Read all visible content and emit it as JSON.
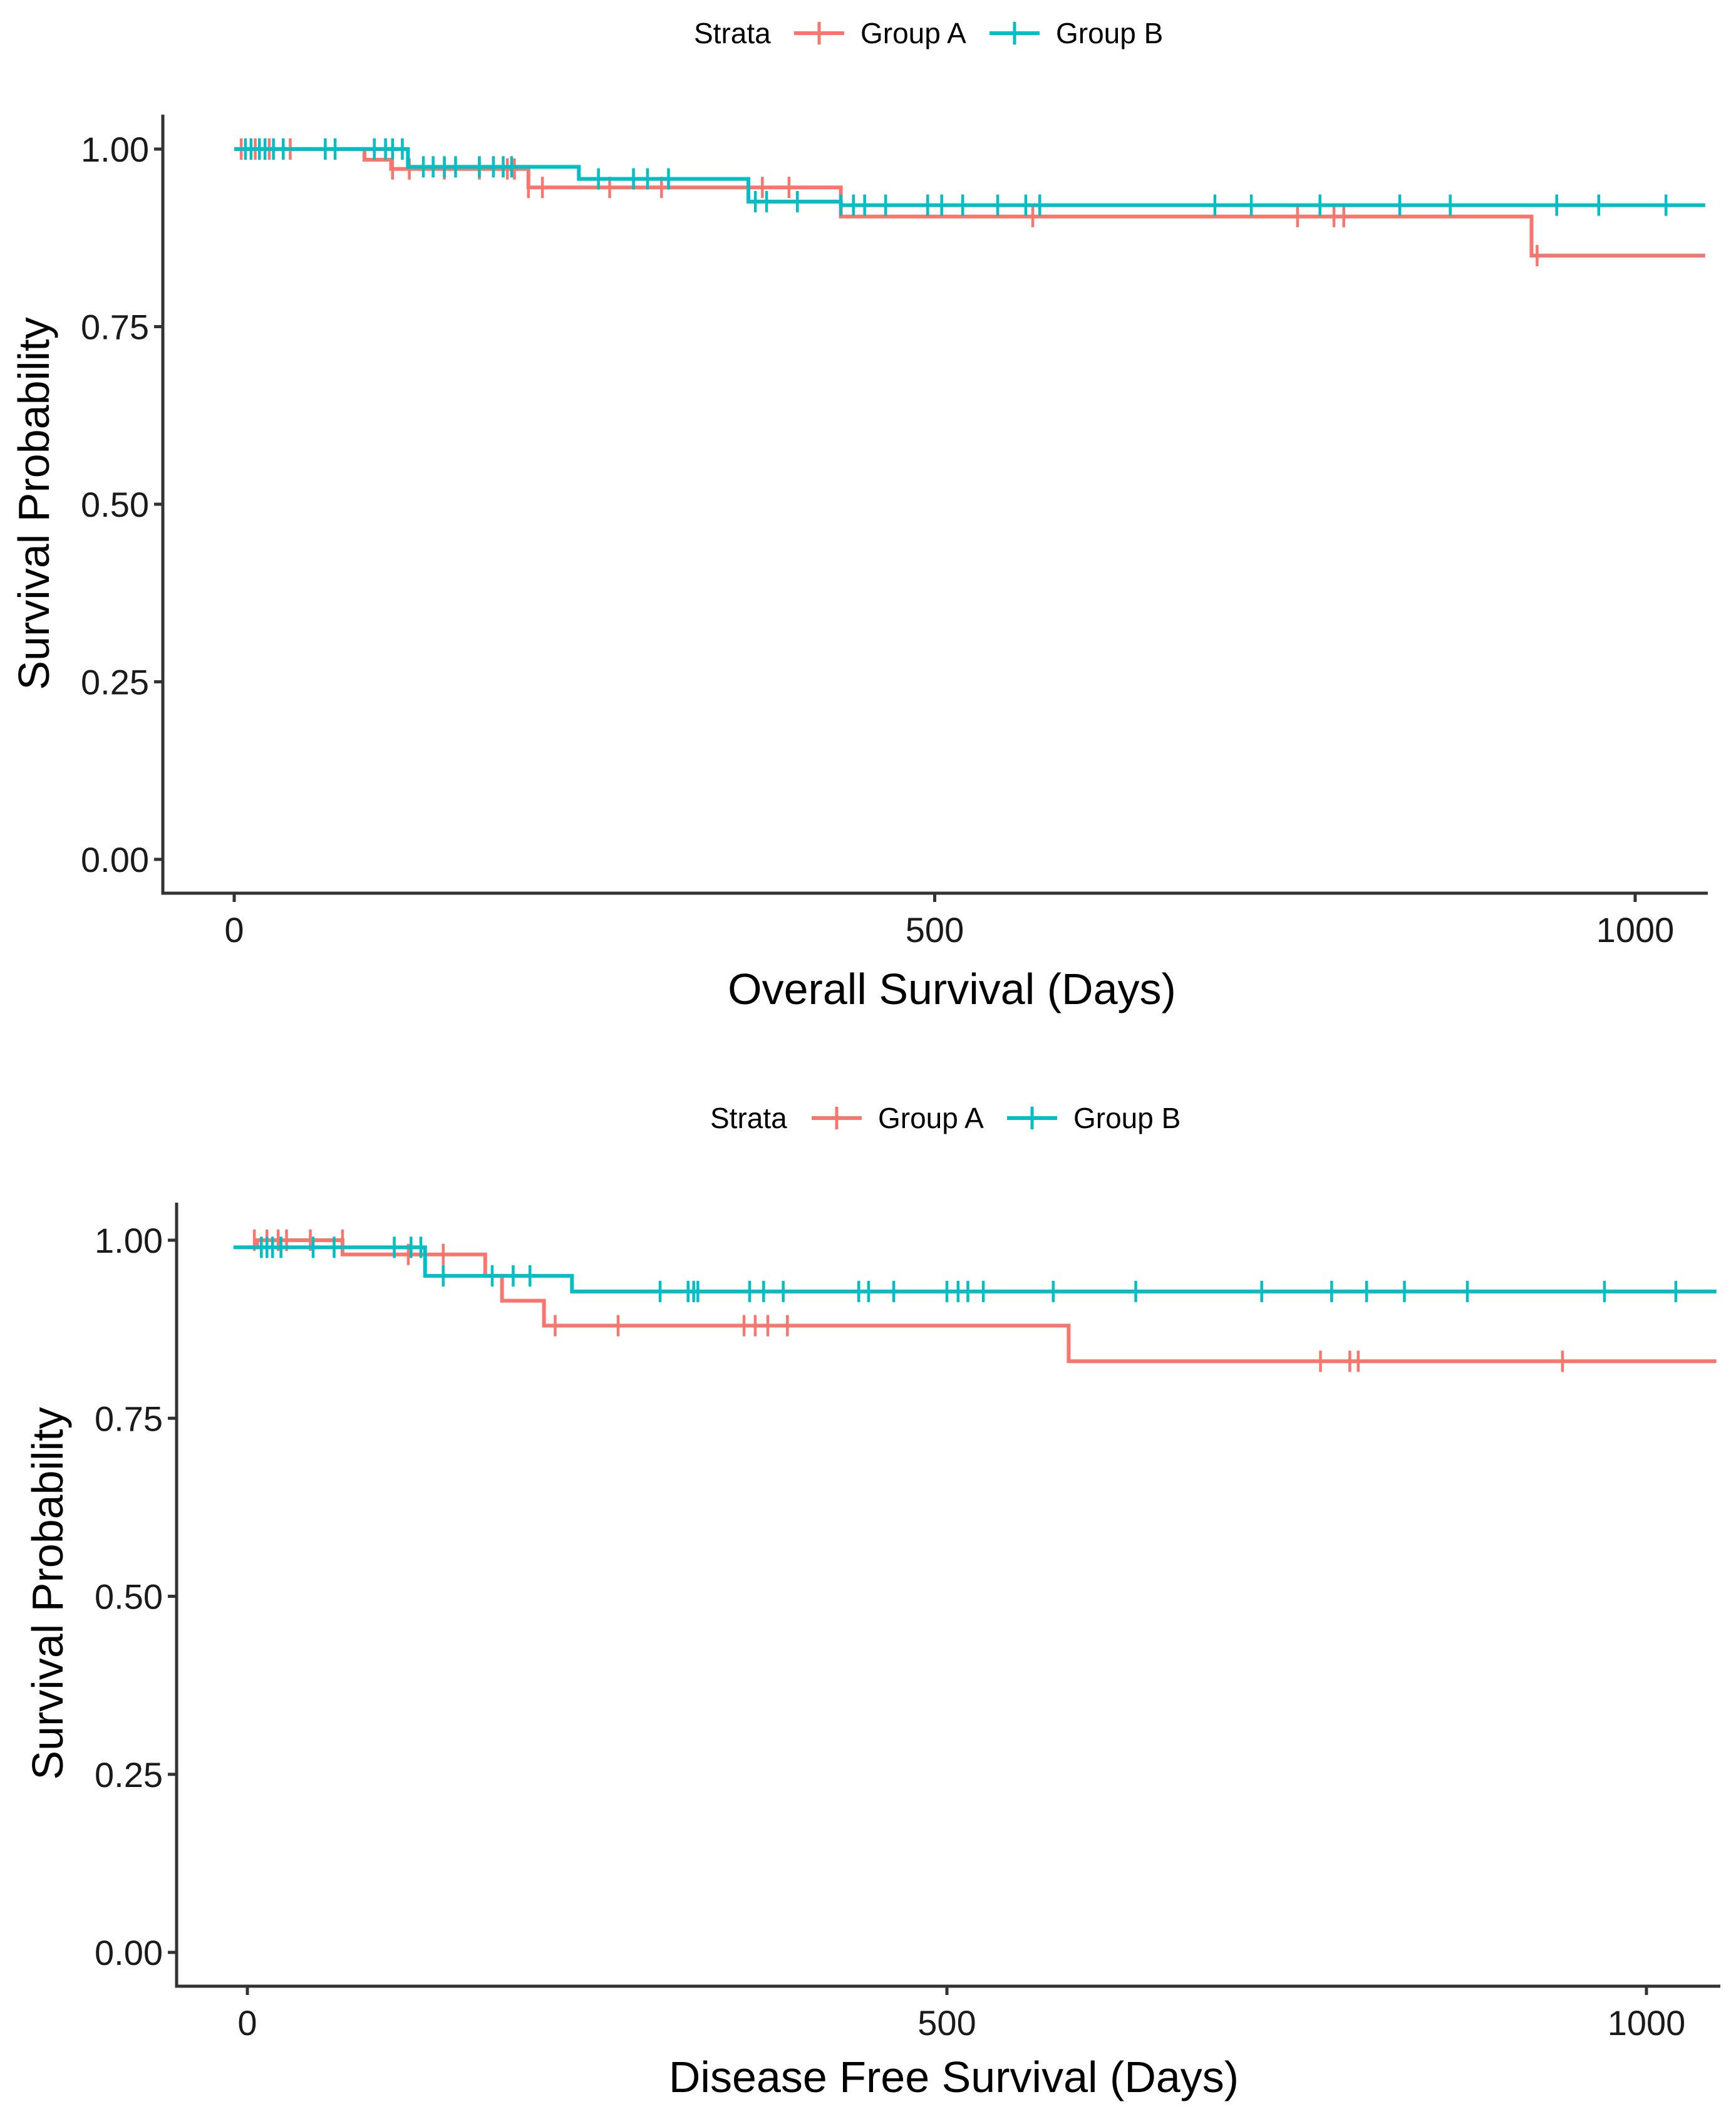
{
  "colors": {
    "group_a": "#F8766D",
    "group_b": "#00BFC4"
  },
  "chart_data": [
    {
      "type": "line",
      "subtype": "kaplan-meier step",
      "title": "",
      "legend_title": "Strata",
      "legend_position": "top",
      "xlabel": "Overall Survival (Days)",
      "ylabel": "Survival Probability",
      "xlim": [
        -10,
        1050
      ],
      "ylim": [
        -0.05,
        1.05
      ],
      "xticks": [
        0,
        500,
        1000
      ],
      "xtick_labels": [
        "0",
        "500",
        "1000"
      ],
      "yticks": [
        0,
        0.25,
        0.5,
        0.75,
        1.0
      ],
      "ytick_labels": [
        "0.00",
        "0.25",
        "0.50",
        "0.75",
        "1.00"
      ],
      "grid": false,
      "series": [
        {
          "name": "Group A",
          "color": "#F8766D",
          "steps": [
            [
              0,
              1.0
            ],
            [
              93,
              0.985
            ],
            [
              112,
              0.972
            ],
            [
              210,
              0.946
            ],
            [
              433,
              0.905
            ],
            [
              926,
              0.85
            ],
            [
              1050,
              0.85
            ]
          ],
          "censored": [
            [
              5,
              1.0
            ],
            [
              15,
              1.0
            ],
            [
              25,
              1.0
            ],
            [
              40,
              1.0
            ],
            [
              113,
              0.972
            ],
            [
              125,
              0.972
            ],
            [
              150,
              0.972
            ],
            [
              175,
              0.972
            ],
            [
              195,
              0.972
            ],
            [
              200,
              0.972
            ],
            [
              210,
              0.946
            ],
            [
              220,
              0.946
            ],
            [
              268,
              0.946
            ],
            [
              305,
              0.946
            ],
            [
              377,
              0.946
            ],
            [
              396,
              0.946
            ],
            [
              570,
              0.905
            ],
            [
              759,
              0.905
            ],
            [
              785,
              0.905
            ],
            [
              792,
              0.905
            ],
            [
              930,
              0.85
            ]
          ]
        },
        {
          "name": "Group B",
          "color": "#00BFC4",
          "steps": [
            [
              0,
              1.0
            ],
            [
              124,
              0.975
            ],
            [
              246,
              0.958
            ],
            [
              367,
              0.926
            ],
            [
              433,
              0.921
            ],
            [
              1050,
              0.921
            ]
          ],
          "censored": [
            [
              8,
              1.0
            ],
            [
              12,
              1.0
            ],
            [
              18,
              1.0
            ],
            [
              22,
              1.0
            ],
            [
              28,
              1.0
            ],
            [
              35,
              1.0
            ],
            [
              65,
              1.0
            ],
            [
              72,
              1.0
            ],
            [
              100,
              1.0
            ],
            [
              108,
              1.0
            ],
            [
              113,
              1.0
            ],
            [
              120,
              1.0
            ],
            [
              135,
              0.975
            ],
            [
              142,
              0.975
            ],
            [
              150,
              0.975
            ],
            [
              158,
              0.975
            ],
            [
              175,
              0.975
            ],
            [
              185,
              0.975
            ],
            [
              192,
              0.975
            ],
            [
              198,
              0.975
            ],
            [
              260,
              0.958
            ],
            [
              285,
              0.958
            ],
            [
              295,
              0.958
            ],
            [
              310,
              0.958
            ],
            [
              372,
              0.926
            ],
            [
              380,
              0.926
            ],
            [
              402,
              0.926
            ],
            [
              433,
              0.921
            ],
            [
              442,
              0.921
            ],
            [
              450,
              0.921
            ],
            [
              465,
              0.921
            ],
            [
              495,
              0.921
            ],
            [
              505,
              0.921
            ],
            [
              520,
              0.921
            ],
            [
              545,
              0.921
            ],
            [
              565,
              0.921
            ],
            [
              575,
              0.921
            ],
            [
              700,
              0.921
            ],
            [
              726,
              0.921
            ],
            [
              775,
              0.921
            ],
            [
              832,
              0.921
            ],
            [
              868,
              0.921
            ],
            [
              944,
              0.921
            ],
            [
              974,
              0.921
            ],
            [
              1022,
              0.921
            ]
          ]
        }
      ]
    },
    {
      "type": "line",
      "subtype": "kaplan-meier step",
      "title": "",
      "legend_title": "Strata",
      "legend_position": "top",
      "xlabel": "Disease Free Survival (Days)",
      "ylabel": "Survival Probability",
      "xlim": [
        -10,
        1050
      ],
      "ylim": [
        -0.05,
        1.05
      ],
      "xticks": [
        0,
        500,
        1000
      ],
      "xtick_labels": [
        "0",
        "500",
        "1000"
      ],
      "yticks": [
        0,
        0.25,
        0.5,
        0.75,
        1.0
      ],
      "ytick_labels": [
        "0.00",
        "0.25",
        "0.50",
        "0.75",
        "1.00"
      ],
      "grid": false,
      "series": [
        {
          "name": "Group A",
          "color": "#F8766D",
          "steps": [
            [
              0,
              0.99
            ],
            [
              7,
              1.0
            ],
            [
              68,
              0.98
            ],
            [
              170,
              0.95
            ],
            [
              182,
              0.915
            ],
            [
              212,
              0.88
            ],
            [
              587,
              0.83
            ],
            [
              1050,
              0.83
            ]
          ],
          "censored": [
            [
              5,
              1.0
            ],
            [
              14,
              1.0
            ],
            [
              22,
              1.0
            ],
            [
              28,
              1.0
            ],
            [
              45,
              1.0
            ],
            [
              68,
              1.0
            ],
            [
              115,
              0.98
            ],
            [
              140,
              0.98
            ],
            [
              220,
              0.88
            ],
            [
              265,
              0.88
            ],
            [
              355,
              0.88
            ],
            [
              363,
              0.88
            ],
            [
              372,
              0.88
            ],
            [
              386,
              0.88
            ],
            [
              767,
              0.83
            ],
            [
              788,
              0.83
            ],
            [
              794,
              0.83
            ],
            [
              940,
              0.83
            ]
          ]
        },
        {
          "name": "Group B",
          "color": "#00BFC4",
          "steps": [
            [
              -10,
              0.99
            ],
            [
              127,
              0.95
            ],
            [
              232,
              0.928
            ],
            [
              1050,
              0.928
            ]
          ],
          "censored": [
            [
              10,
              0.99
            ],
            [
              14,
              0.99
            ],
            [
              18,
              0.99
            ],
            [
              24,
              0.99
            ],
            [
              47,
              0.99
            ],
            [
              62,
              0.99
            ],
            [
              105,
              0.99
            ],
            [
              117,
              0.99
            ],
            [
              124,
              0.99
            ],
            [
              140,
              0.95
            ],
            [
              175,
              0.95
            ],
            [
              190,
              0.95
            ],
            [
              202,
              0.95
            ],
            [
              295,
              0.928
            ],
            [
              315,
              0.928
            ],
            [
              319,
              0.928
            ],
            [
              322,
              0.928
            ],
            [
              359,
              0.928
            ],
            [
              369,
              0.928
            ],
            [
              383,
              0.928
            ],
            [
              437,
              0.928
            ],
            [
              444,
              0.928
            ],
            [
              462,
              0.928
            ],
            [
              500,
              0.928
            ],
            [
              508,
              0.928
            ],
            [
              515,
              0.928
            ],
            [
              526,
              0.928
            ],
            [
              576,
              0.928
            ],
            [
              635,
              0.928
            ],
            [
              725,
              0.928
            ],
            [
              775,
              0.928
            ],
            [
              800,
              0.928
            ],
            [
              827,
              0.928
            ],
            [
              872,
              0.928
            ],
            [
              970,
              0.928
            ],
            [
              1021,
              0.928
            ]
          ]
        }
      ]
    }
  ],
  "charts": [
    {
      "legend_title": "Strata",
      "xlabel": "Overall Survival (Days)",
      "ylabel": "Survival Probability",
      "series": [
        {
          "name": "Group A"
        },
        {
          "name": "Group B"
        }
      ]
    },
    {
      "legend_title": "Strata",
      "xlabel": "Disease Free Survival (Days)",
      "ylabel": "Survival Probability",
      "series": [
        {
          "name": "Group A"
        },
        {
          "name": "Group B"
        }
      ]
    }
  ]
}
